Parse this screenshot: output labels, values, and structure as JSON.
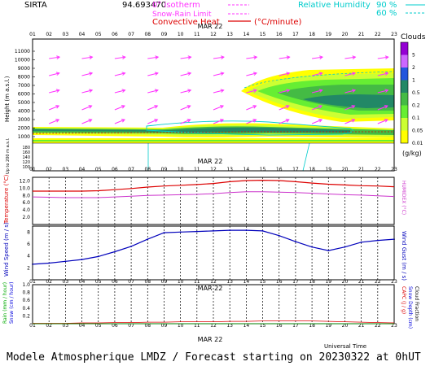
{
  "header": {
    "station": "SIRTA",
    "coords": "94.693470",
    "legend_isotherm": "0° isotherm",
    "legend_snow_rain": "Snow-Rain Limit",
    "legend_convective": "Convective Heat",
    "legend_convective_unit": "(°C/minute)",
    "legend_rh": "Relative Humidity",
    "legend_rh_90": "90 %",
    "legend_rh_60": "60 %"
  },
  "date_label": "MAR 22",
  "hours": [
    "01",
    "02",
    "03",
    "04",
    "05",
    "06",
    "07",
    "08",
    "09",
    "10",
    "11",
    "12",
    "13",
    "14",
    "15",
    "16",
    "17",
    "18",
    "19",
    "20",
    "21",
    "22",
    "23"
  ],
  "colors": {
    "temperature": "#dd0000",
    "humidex": "#cc33cc",
    "wind": "#0000bb",
    "rain": "#00aa00",
    "snow": "#0000dd",
    "arrow": "#ff33ff",
    "frame": "#000000"
  },
  "panels": {
    "clouds": {
      "ylabel": "Height (m a.s.l.)",
      "ylabel_low": "Up to 200 m a.s.l.",
      "yticks": [
        "11000",
        "10000",
        "9000",
        "8000",
        "7000",
        "6000",
        "5000",
        "4000",
        "3000",
        "2000",
        "1000"
      ],
      "yticks_low": [
        "180",
        "160",
        "140",
        "120",
        "100"
      ],
      "colorbar_title": "Clouds",
      "colorbar_unit": "(g/kg)",
      "colorbar_ticks": [
        "5",
        "2",
        "1",
        "0.5",
        "0.2",
        "0.1",
        "0.05",
        "0.01"
      ],
      "colorbar_colors": [
        "#9400d3",
        "#cc66ff",
        "#2255dd",
        "#228866",
        "#44bb44",
        "#66ee33",
        "#ccff33",
        "#ffff00"
      ]
    },
    "temperature": {
      "ylabel": "Temperature (°C)",
      "ylabel_right": "HUMIDEX (°C)",
      "yticks": [
        "12.0",
        "10.0",
        "8.0",
        "6.0",
        "4.0",
        "2.0"
      ]
    },
    "wind": {
      "ylabel": "Wind Speed (m / s)",
      "ylabel_right": "Wind Gust (m / s)",
      "yticks": [
        "8",
        "6",
        "4",
        "2"
      ]
    },
    "precip": {
      "ylabel_rain": "Rain (mm / hour)",
      "ylabel_snow": "Snow (cm / hour)",
      "ylabel_right_capc": "CAPC (J / g)",
      "ylabel_right_snowdepth": "Snow Depth (cm)",
      "ylabel_right_fraction": "Cloud Fraction",
      "yticks": [
        "1.0",
        "0.8",
        "0.6",
        "0.4",
        "0.2"
      ],
      "xlabel": "Universal Time"
    }
  },
  "chart_data": [
    {
      "type": "line",
      "title": "",
      "xlabel": "",
      "ylabel": "Temperature (°C)",
      "x": [
        1,
        2,
        3,
        4,
        5,
        6,
        7,
        8,
        9,
        10,
        11,
        12,
        13,
        14,
        15,
        16,
        17,
        18,
        19,
        20,
        21,
        22,
        23
      ],
      "ylim": [
        0,
        13
      ],
      "series": [
        {
          "values": [
            9.2,
            9.2,
            9.2,
            9.2,
            9.3,
            9.6,
            9.9,
            10.3,
            10.6,
            10.8,
            11.0,
            11.3,
            11.8,
            12.1,
            12.2,
            12.1,
            11.8,
            11.4,
            11.1,
            10.9,
            10.7,
            10.6,
            10.4
          ]
        },
        {
          "values": [
            7.6,
            7.5,
            7.4,
            7.4,
            7.4,
            7.6,
            7.8,
            8.0,
            8.1,
            8.2,
            8.3,
            8.5,
            8.8,
            9.0,
            9.0,
            8.9,
            8.8,
            8.6,
            8.4,
            8.2,
            8.1,
            7.9,
            7.7
          ]
        }
      ]
    },
    {
      "type": "line",
      "title": "",
      "xlabel": "",
      "ylabel": "Wind Speed (m / s)",
      "x": [
        1,
        2,
        3,
        4,
        5,
        6,
        7,
        8,
        9,
        10,
        11,
        12,
        13,
        14,
        15,
        16,
        17,
        18,
        19,
        20,
        21,
        22,
        23
      ],
      "ylim": [
        0,
        9
      ],
      "series": [
        {
          "values": [
            2.6,
            2.8,
            3.1,
            3.4,
            3.9,
            4.7,
            5.6,
            6.8,
            7.9,
            8.0,
            8.1,
            8.2,
            8.3,
            8.3,
            8.2,
            7.4,
            6.4,
            5.5,
            4.9,
            5.5,
            6.3,
            6.6,
            6.8
          ]
        }
      ]
    },
    {
      "type": "line",
      "title": "",
      "xlabel": "Universal Time",
      "ylabel": "Rain (mm / hour)",
      "x": [
        1,
        2,
        3,
        4,
        5,
        6,
        7,
        8,
        9,
        10,
        11,
        12,
        13,
        14,
        15,
        16,
        17,
        18,
        19,
        20,
        21,
        22,
        23
      ],
      "ylim": [
        0,
        1
      ],
      "series": [
        {
          "values": [
            0,
            0,
            0,
            0,
            0,
            0,
            0,
            0,
            0,
            0,
            0,
            0,
            0,
            0,
            0,
            0,
            0,
            0,
            0,
            0,
            0,
            0,
            0
          ]
        },
        {
          "values": [
            0,
            0,
            0,
            0,
            0,
            0,
            0,
            0,
            0,
            0,
            0,
            0,
            0,
            0,
            0,
            0,
            0,
            0,
            0,
            0,
            0,
            0,
            0
          ]
        },
        {
          "values": [
            0.01,
            0.01,
            0.01,
            0.02,
            0.02,
            0.03,
            0.03,
            0.04,
            0.04,
            0.05,
            0.05,
            0.05,
            0.06,
            0.06,
            0.07,
            0.07,
            0.07,
            0.07,
            0.06,
            0.05,
            0.04,
            0.03,
            0.02
          ]
        }
      ]
    }
  ],
  "footer": "Modele Atmospherique LMDZ / Forecast starting on 20230322 at 0hUT"
}
